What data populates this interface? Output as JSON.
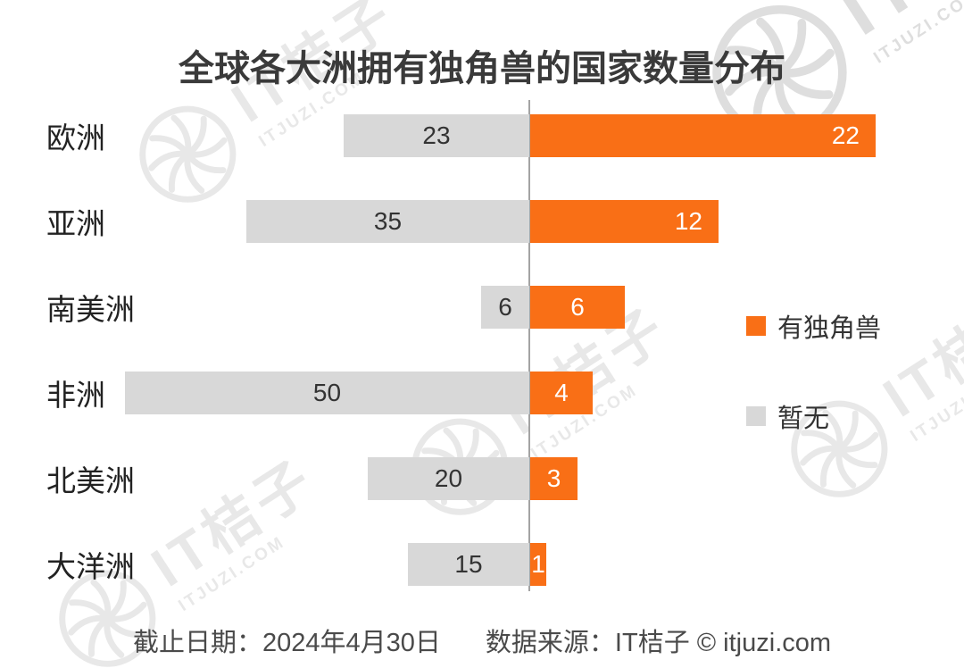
{
  "title": "全球各大洲拥有独角兽的国家数量分布",
  "legend": {
    "with_unicorn": "有独角兽",
    "without_unicorn": "暂无"
  },
  "footer": {
    "date": "截止日期：2024年4月30日",
    "source": "数据来源：IT桔子 © itjuzi.com"
  },
  "watermark": {
    "brand": "IT桔子",
    "domain": "ITJUZI.COM"
  },
  "colors": {
    "orange": "#F96F16",
    "gray": "#D8D8D8",
    "axis_line": "#A3A3A3",
    "title_text": "#3A3A3A",
    "value_on_gray": "#333333",
    "value_on_orange": "#FFFFFF"
  },
  "chart_data": {
    "type": "bar",
    "orientation": "horizontal-diverging",
    "title": "全球各大洲拥有独角兽的国家数量分布",
    "categories": [
      "欧洲",
      "亚洲",
      "南美洲",
      "非洲",
      "北美洲",
      "大洋洲"
    ],
    "series": [
      {
        "name": "有独角兽",
        "color": "#F96F16",
        "direction": "right",
        "values": [
          22,
          12,
          6,
          4,
          3,
          1
        ]
      },
      {
        "name": "暂无",
        "color": "#D8D8D8",
        "direction": "left",
        "values": [
          23,
          35,
          6,
          50,
          20,
          15
        ]
      }
    ],
    "left_axis_max": 50,
    "right_axis_max": 22,
    "grid": false,
    "legend_position": "right",
    "value_labels": "on-bars"
  }
}
